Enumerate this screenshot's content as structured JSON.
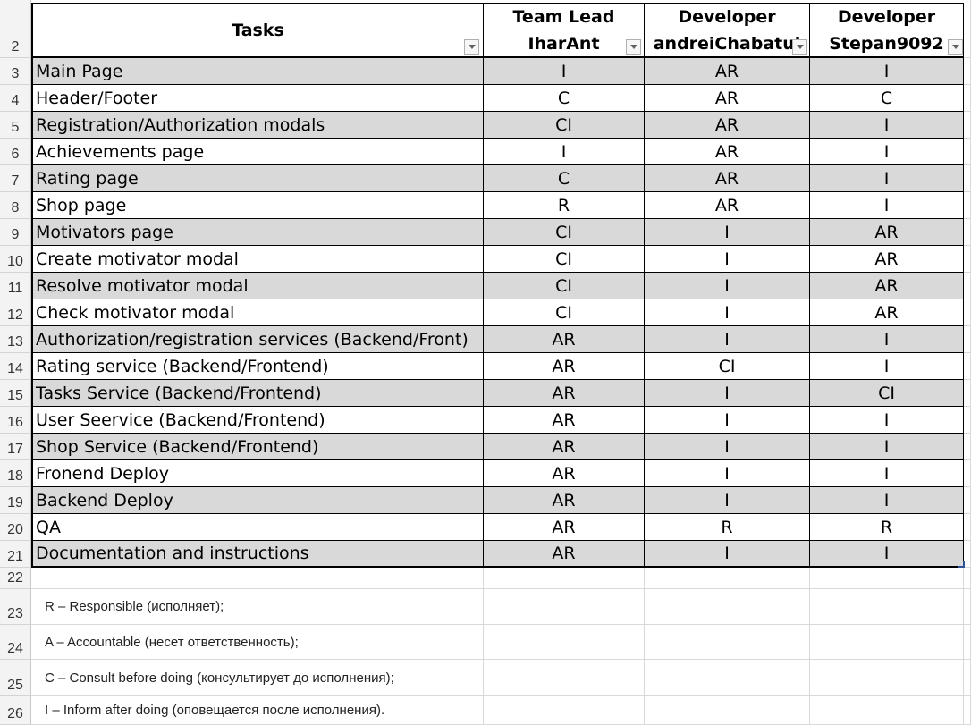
{
  "row_numbers": [
    "2",
    "3",
    "4",
    "5",
    "6",
    "7",
    "8",
    "9",
    "10",
    "11",
    "12",
    "13",
    "14",
    "15",
    "16",
    "17",
    "18",
    "19",
    "20",
    "21",
    "22",
    "23",
    "24",
    "25",
    "26"
  ],
  "header": {
    "tasks": "Tasks",
    "col1": {
      "line1": "Team Lead",
      "line2": "IharAnt"
    },
    "col2": {
      "line1": "Developer",
      "line2": "andreiChabatul"
    },
    "col3": {
      "line1": "Developer",
      "line2": "Stepan9092"
    }
  },
  "rows": [
    {
      "task": "Main Page",
      "c1": "I",
      "c2": "AR",
      "c3": "I"
    },
    {
      "task": "Header/Footer",
      "c1": "C",
      "c2": "AR",
      "c3": "C"
    },
    {
      "task": "Registration/Authorization modals",
      "c1": "CI",
      "c2": "AR",
      "c3": "I"
    },
    {
      "task": "Achievements page",
      "c1": "I",
      "c2": "AR",
      "c3": "I"
    },
    {
      "task": "Rating page",
      "c1": "C",
      "c2": "AR",
      "c3": "I"
    },
    {
      "task": "Shop page",
      "c1": "R",
      "c2": "AR",
      "c3": "I"
    },
    {
      "task": "Motivators page",
      "c1": "CI",
      "c2": "I",
      "c3": "AR"
    },
    {
      "task": "Create motivator modal",
      "c1": "CI",
      "c2": "I",
      "c3": "AR"
    },
    {
      "task": "Resolve motivator modal",
      "c1": "CI",
      "c2": "I",
      "c3": "AR"
    },
    {
      "task": "Check motivator modal",
      "c1": "CI",
      "c2": "I",
      "c3": "AR"
    },
    {
      "task": "Authorization/registration services (Backend/Front)",
      "c1": "AR",
      "c2": "I",
      "c3": "I"
    },
    {
      "task": "Rating service (Backend/Frontend)",
      "c1": "AR",
      "c2": "CI",
      "c3": "I"
    },
    {
      "task": "Tasks Service (Backend/Frontend)",
      "c1": "AR",
      "c2": "I",
      "c3": "CI"
    },
    {
      "task": "User Seervice (Backend/Frontend)",
      "c1": "AR",
      "c2": "I",
      "c3": "I"
    },
    {
      "task": "Shop Service (Backend/Frontend)",
      "c1": "AR",
      "c2": "I",
      "c3": "I"
    },
    {
      "task": "Fronend Deploy",
      "c1": "AR",
      "c2": "I",
      "c3": "I"
    },
    {
      "task": "Backend Deploy",
      "c1": "AR",
      "c2": "I",
      "c3": "I"
    },
    {
      "task": "QA",
      "c1": "AR",
      "c2": "R",
      "c3": "R"
    },
    {
      "task": "Documentation and instructions",
      "c1": "AR",
      "c2": "I",
      "c3": "I"
    }
  ],
  "legend": [
    "R – Responsible (исполняет);",
    "A – Accountable (несет ответственность);",
    "C – Consult before doing (консультирует до исполнения);",
    "I – Inform after doing (оповещается после исполнения)."
  ],
  "colors": {
    "band": "#d9d9d9",
    "border": "#000000",
    "gridline": "#d9d9d9",
    "row_header_bg": "#f3f3f3"
  }
}
